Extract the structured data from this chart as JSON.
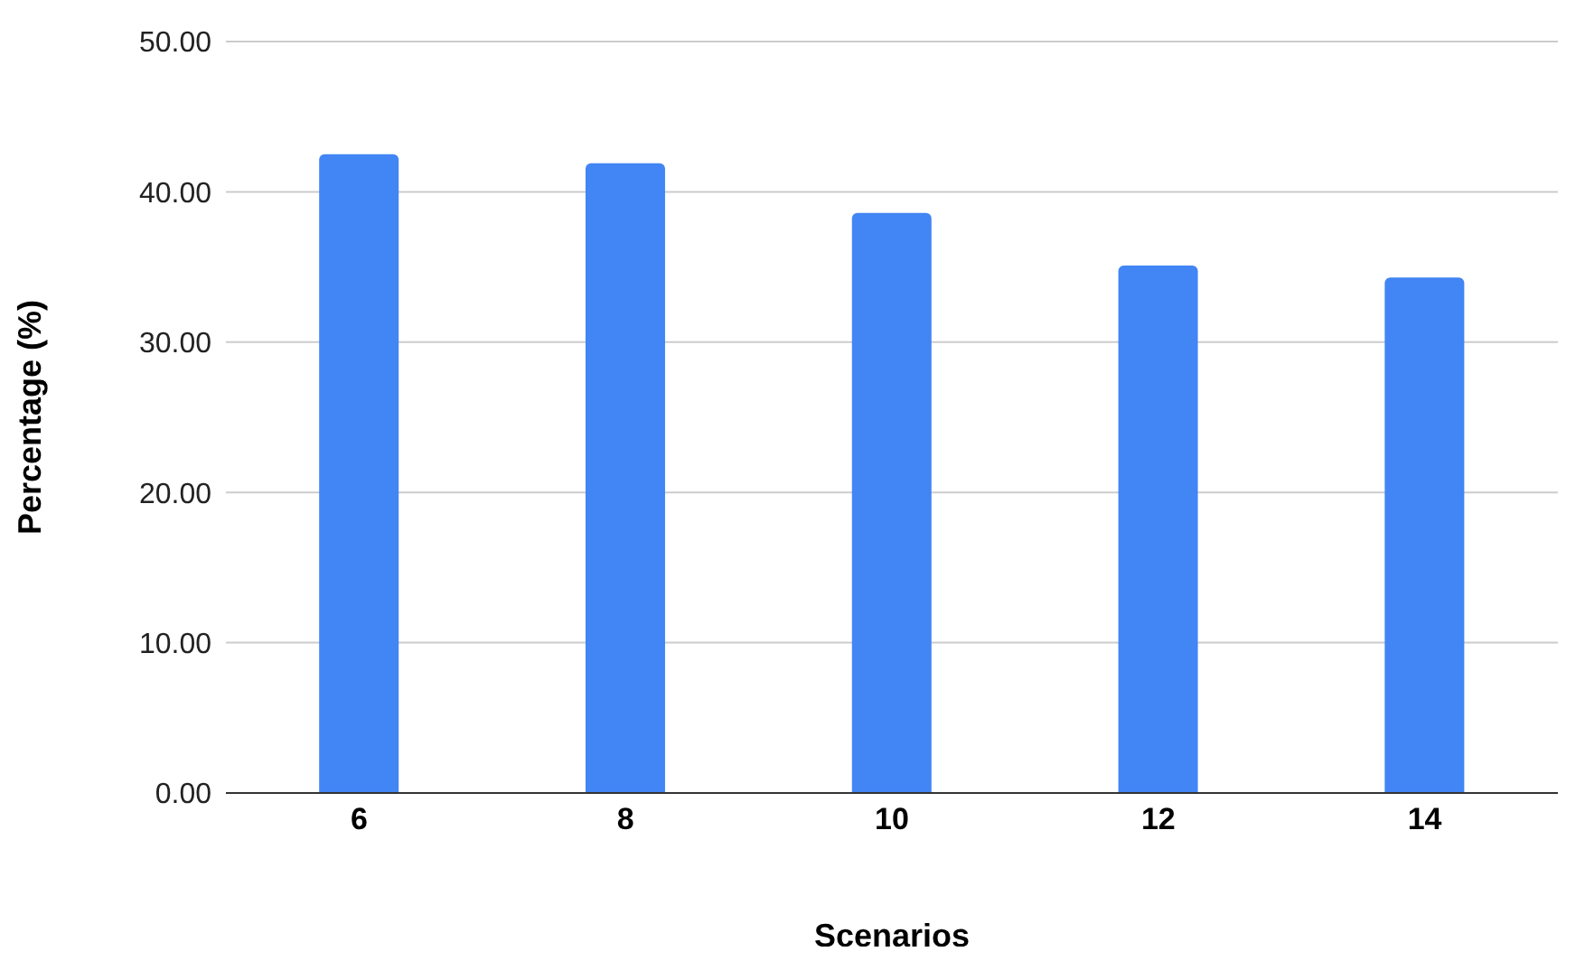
{
  "chart_data": {
    "type": "bar",
    "xlabel": "Scenarios",
    "ylabel": "Percentage (%)",
    "categories": [
      "6",
      "8",
      "10",
      "12",
      "14"
    ],
    "series": [
      {
        "color": "#4285f4",
        "values": [
          42.5,
          41.9,
          38.6,
          35.1,
          34.3
        ]
      }
    ],
    "ylim": [
      0,
      50
    ],
    "yticks": [
      {
        "value": 0,
        "label": "0.00"
      },
      {
        "value": 10,
        "label": "10.00"
      },
      {
        "value": 20,
        "label": "20.00"
      },
      {
        "value": 30,
        "label": "30.00"
      },
      {
        "value": 40,
        "label": "40.00"
      },
      {
        "value": 50,
        "label": "50.00"
      }
    ],
    "grid": "y",
    "legend": false
  }
}
